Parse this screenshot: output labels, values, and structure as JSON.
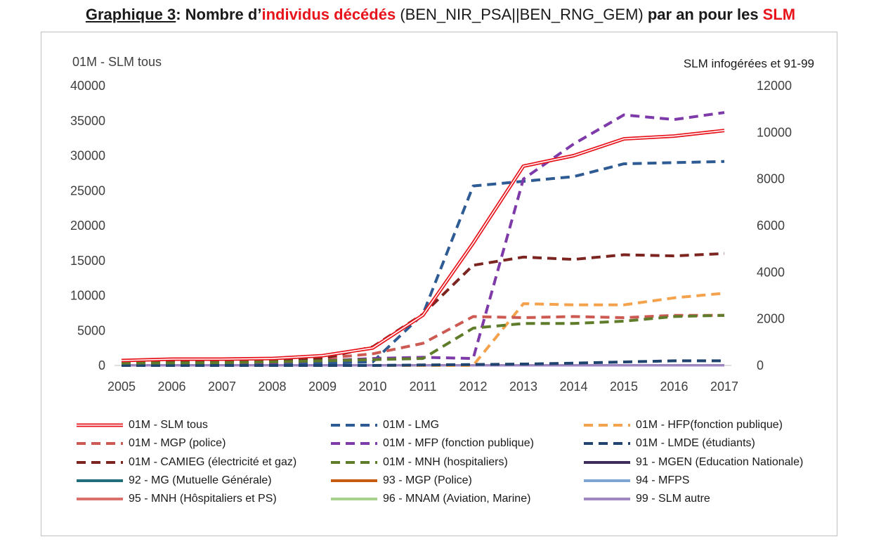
{
  "title": {
    "prefix": "Graphique 3",
    "colon": ": Nombre d’",
    "red1": "individus décédés",
    "middle": " (BEN_NIR_PSA||BEN_RNG_GEM) ",
    "bold2": "par an pour les ",
    "red2": "SLM"
  },
  "colors": {
    "title_red": "#e8141c"
  },
  "chart_data": {
    "type": "line",
    "x": [
      2005,
      2006,
      2007,
      2008,
      2009,
      2010,
      2011,
      2012,
      2013,
      2014,
      2015,
      2016,
      2017
    ],
    "y_left": {
      "label": "01M - SLM tous",
      "min": 0,
      "max": 40000,
      "ticks": [
        "0",
        "5000",
        "10000",
        "15000",
        "20000",
        "25000",
        "30000",
        "35000",
        "40000"
      ]
    },
    "y_right": {
      "label": "SLM infogérées et 91-99",
      "min": 0,
      "max": 12000,
      "ticks": [
        "0",
        "2000",
        "4000",
        "6000",
        "8000",
        "10000",
        "12000"
      ]
    },
    "grid": false,
    "legend_position": "bottom",
    "series": [
      {
        "name": "01M -  SLM tous",
        "axis": "left",
        "style": "double",
        "color": "#e8141c",
        "values": [
          700,
          900,
          900,
          1000,
          1400,
          2500,
          7200,
          17500,
          28500,
          30000,
          32400,
          32800,
          33600
        ]
      },
      {
        "name": "01M -  LMG",
        "axis": "right",
        "style": "dash",
        "color": "#2e5b93",
        "values": [
          60,
          70,
          80,
          90,
          100,
          150,
          2200,
          7700,
          7900,
          8100,
          8650,
          8700,
          8750
        ]
      },
      {
        "name": "01M -  HFP(fonction publique)",
        "axis": "right",
        "style": "dash",
        "color": "#f4a24c",
        "values": [
          0,
          0,
          0,
          0,
          0,
          0,
          0,
          0,
          2650,
          2600,
          2600,
          2900,
          3100
        ]
      },
      {
        "name": "01M -  MGP (police)",
        "axis": "right",
        "style": "dash",
        "color": "#cd5a52",
        "values": [
          150,
          160,
          170,
          200,
          300,
          500,
          950,
          2100,
          2050,
          2100,
          2050,
          2150,
          2150
        ]
      },
      {
        "name": "01M -  MFP (fonction publique)",
        "axis": "right",
        "style": "dash",
        "color": "#7d3aa8",
        "values": [
          80,
          90,
          100,
          120,
          200,
          300,
          350,
          300,
          8000,
          9500,
          10750,
          10550,
          10850
        ]
      },
      {
        "name": "01M -  LMDE (étudiants)",
        "axis": "right",
        "style": "dash",
        "color": "#1f4470",
        "values": [
          0,
          0,
          0,
          0,
          0,
          0,
          20,
          40,
          60,
          100,
          150,
          200,
          200
        ]
      },
      {
        "name": "01M -  CAMIEG (électricité et gaz)",
        "axis": "right",
        "style": "dash",
        "color": "#7c2420",
        "values": [
          150,
          170,
          200,
          250,
          300,
          800,
          2200,
          4300,
          4650,
          4550,
          4750,
          4700,
          4800
        ]
      },
      {
        "name": "01M -  MNH (hospitaliers)",
        "axis": "right",
        "style": "dash",
        "color": "#5e7c2a",
        "values": [
          100,
          110,
          120,
          150,
          200,
          250,
          300,
          1600,
          1800,
          1800,
          1900,
          2100,
          2150
        ]
      },
      {
        "name": "91 - MGEN (Education Nationale)",
        "axis": "right",
        "style": "solid",
        "color": "#3e2d5c",
        "values": [
          10,
          10,
          10,
          10,
          10,
          10,
          10,
          10,
          10,
          10,
          10,
          10,
          10
        ]
      },
      {
        "name": "92 - MG (Mutuelle Générale)",
        "axis": "right",
        "style": "solid",
        "color": "#1f6e7a",
        "values": [
          10,
          10,
          10,
          10,
          10,
          10,
          10,
          10,
          10,
          10,
          10,
          10,
          10
        ]
      },
      {
        "name": "93 - MGP (Police)",
        "axis": "right",
        "style": "solid",
        "color": "#c55a11",
        "values": [
          10,
          10,
          10,
          10,
          10,
          10,
          10,
          10,
          10,
          10,
          10,
          10,
          10
        ]
      },
      {
        "name": "94 - MFPS",
        "axis": "right",
        "style": "solid",
        "color": "#7ea4d3",
        "values": [
          10,
          10,
          10,
          10,
          10,
          10,
          10,
          10,
          10,
          10,
          10,
          10,
          10
        ]
      },
      {
        "name": "95 - MNH (Hôspitaliers et PS)",
        "axis": "right",
        "style": "solid",
        "color": "#d9706a",
        "values": [
          10,
          10,
          10,
          10,
          10,
          10,
          10,
          10,
          10,
          10,
          10,
          10,
          10
        ]
      },
      {
        "name": "96 - MNAM (Aviation, Marine)",
        "axis": "right",
        "style": "solid",
        "color": "#a9d18e",
        "values": [
          10,
          10,
          10,
          10,
          10,
          10,
          10,
          10,
          10,
          10,
          10,
          10,
          10
        ]
      },
      {
        "name": "99 - SLM autre",
        "axis": "right",
        "style": "solid",
        "color": "#9e86c0",
        "values": [
          10,
          10,
          10,
          10,
          10,
          10,
          10,
          10,
          10,
          10,
          10,
          10,
          10
        ]
      }
    ]
  }
}
